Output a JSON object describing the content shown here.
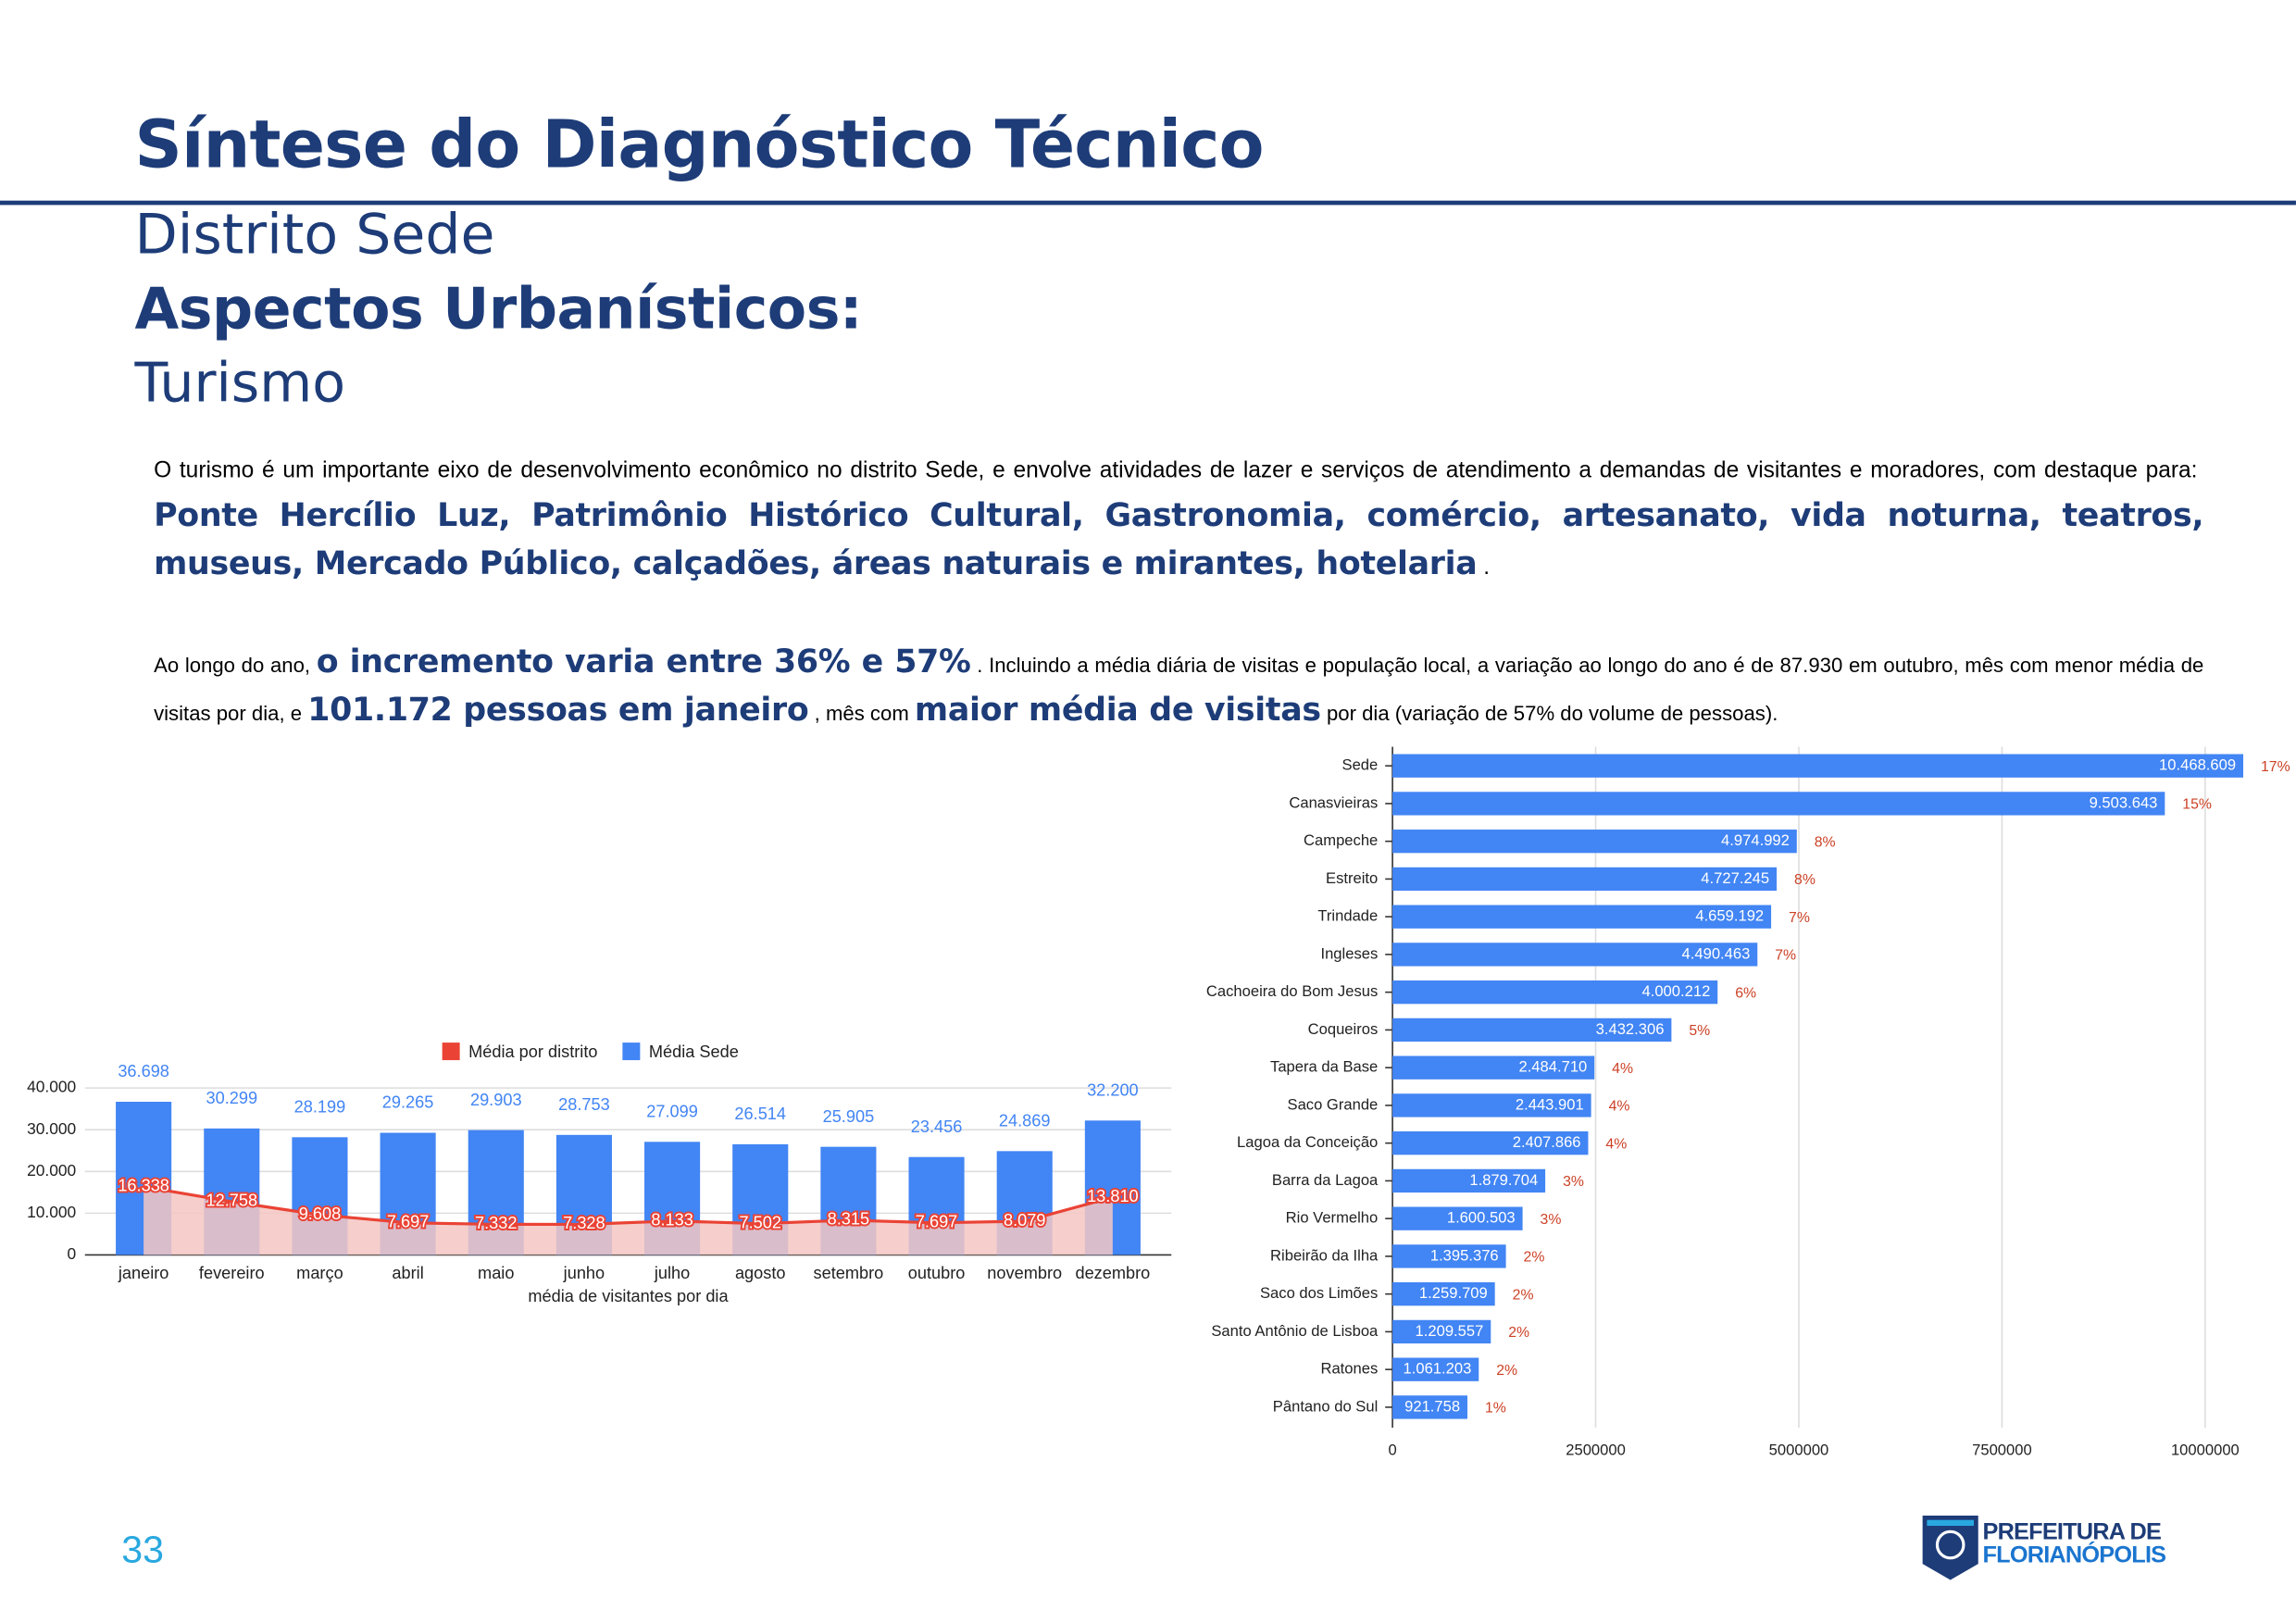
{
  "header": {
    "title": "Síntese do Diagnóstico Técnico",
    "subtitle": "Distrito Sede",
    "section": "Aspectos Urbanísticos:",
    "topic": "Turismo"
  },
  "paragraphs": [
    [
      "O turismo é um importante eixo de desenvolvimento econômico no distrito Sede, e envolve atividades de lazer e serviços de atendimento a demandas de visitantes e moradores, com destaque para:",
      "Ponte Hercílio Luz, Patrimônio Histórico Cultural, Gastronomia, comércio, artesanato, vida noturna, teatros, museus, Mercado Público, calçadões, áreas naturais e mirantes, hotelaria",
      "."
    ],
    [
      "Ao longo do ano,",
      "o incremento varia entre 36% e 57%",
      ". Incluindo a média diária de visitas e população local, a variação ao longo do ano é de 87.930 em outubro, mês com menor média de visitas por dia, e",
      "101.172 pessoas em janeiro",
      ", mês com",
      "maior média de visitas",
      "por dia (variação de 57% do volume de pessoas)."
    ]
  ],
  "page_number": "33",
  "logo": {
    "line1": "PREFEITURA DE",
    "line2": "FLORIANÓPOLIS"
  },
  "chart_data": [
    {
      "type": "bar",
      "x_label": "média de visitantes por dia",
      "legend": "top",
      "grid": true,
      "categories": [
        "janeiro",
        "fevereiro",
        "março",
        "abril",
        "maio",
        "junho",
        "julho",
        "agosto",
        "setembro",
        "outubro",
        "novembro",
        "dezembro"
      ],
      "series": [
        {
          "name": "Média por distrito",
          "color": "#ea4335",
          "fill": "#f4c7c3",
          "type": "area",
          "values": [
            16338,
            12758,
            9608,
            7697,
            7332,
            7328,
            8133,
            7502,
            8315,
            7697,
            8079,
            13810
          ],
          "value_labels": [
            "16.338",
            "12.758",
            "9.608",
            "7.697",
            "7.332",
            "7.328",
            "8.133",
            "7.502",
            "8.315",
            "7.697",
            "8.079",
            "13.810"
          ]
        },
        {
          "name": "Média Sede",
          "color": "#4285f4",
          "type": "bar",
          "values": [
            36698,
            30299,
            28199,
            29265,
            29903,
            28753,
            27099,
            26514,
            25905,
            23456,
            24869,
            32200
          ],
          "value_labels": [
            "36.698",
            "30.299",
            "28.199",
            "29.265",
            "29.903",
            "28.753",
            "27.099",
            "26.514",
            "25.905",
            "23.456",
            "24.869",
            "32.200"
          ]
        }
      ],
      "ylim": [
        0,
        40000
      ],
      "yticks": [
        0,
        {
          "value": 10000,
          "label": "10.000"
        },
        {
          "value": 20000,
          "label": "20.000"
        },
        {
          "value": 30000,
          "label": "30.000"
        },
        {
          "value": 40000,
          "label": "40.000"
        }
      ]
    },
    {
      "type": "hbar",
      "color": "#4285f4",
      "label_color": "#cc4125",
      "grid": true,
      "categories": [
        "Sede",
        "Canasvieiras",
        "Campeche",
        "Estreito",
        "Trindade",
        "Ingleses",
        "Cachoeira do Bom Jesus",
        "Coqueiros",
        "Tapera da Base",
        "Saco Grande",
        "Lagoa da Conceição",
        "Barra da Lagoa",
        "Rio Vermelho",
        "Ribeirão da Ilha",
        "Saco dos Limões",
        "Santo Antônio de Lisboa",
        "Ratones",
        "Pântano do Sul"
      ],
      "values": [
        10468609,
        9503643,
        4974992,
        4727245,
        4659192,
        4490463,
        4000212,
        3432306,
        2484710,
        2443901,
        2407866,
        1879704,
        1600503,
        1395376,
        1259709,
        1209557,
        1061203,
        921758
      ],
      "value_labels": [
        "10.468.609",
        "9.503.643",
        "4.974.992",
        "4.727.245",
        "4.659.192",
        "4.490.463",
        "4.000.212",
        "3.432.306",
        "2.484.710",
        "2.443.901",
        "2.407.866",
        "1.879.704",
        "1.600.503",
        "1.395.376",
        "1.259.709",
        "1.209.557",
        "1.061.203",
        "921.758"
      ],
      "share_labels": [
        "17%",
        "15%",
        "8%",
        "8%",
        "7%",
        "7%",
        "6%",
        "5%",
        "4%",
        "4%",
        "4%",
        "3%",
        "3%",
        "2%",
        "2%",
        "2%",
        "2%",
        "1%"
      ],
      "xlim": [
        0,
        10600000
      ],
      "xticks": [
        0,
        2500000,
        5000000,
        7500000,
        10000000
      ]
    }
  ]
}
